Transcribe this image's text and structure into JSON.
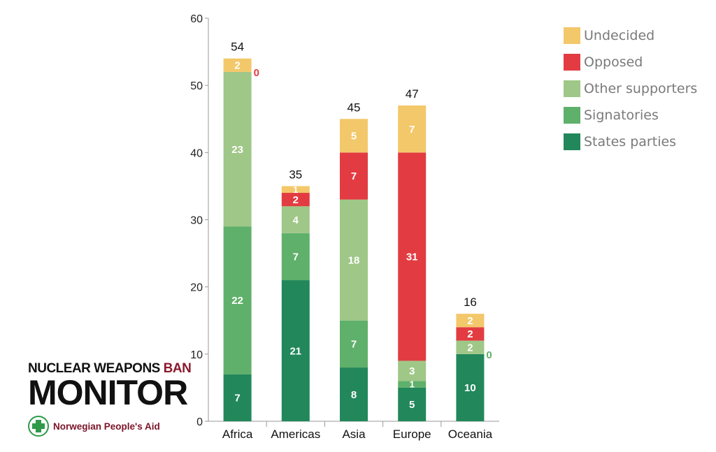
{
  "chart_data": {
    "type": "bar",
    "stacked": true,
    "categories": [
      "Africa",
      "Americas",
      "Asia",
      "Europe",
      "Oceania"
    ],
    "series": [
      {
        "name": "States parties",
        "values": [
          7,
          21,
          8,
          5,
          10
        ],
        "color": "#22875a"
      },
      {
        "name": "Signatories",
        "values": [
          22,
          7,
          7,
          1,
          0
        ],
        "color": "#5fb06a"
      },
      {
        "name": "Other supporters",
        "values": [
          23,
          4,
          18,
          3,
          2
        ],
        "color": "#9fc787"
      },
      {
        "name": "Opposed",
        "values": [
          0,
          2,
          7,
          31,
          2
        ],
        "color": "#e23c42"
      },
      {
        "name": "Undecided",
        "values": [
          2,
          1,
          5,
          7,
          2
        ],
        "color": "#f3c86a"
      }
    ],
    "totals": [
      54,
      35,
      45,
      47,
      16
    ],
    "ylim": [
      0,
      60
    ],
    "yticks": [
      0,
      10,
      20,
      30,
      40,
      50,
      60
    ],
    "grid": false,
    "legend_position": "top-right",
    "legend_order": [
      "Undecided",
      "Opposed",
      "Other supporters",
      "Signatories",
      "States parties"
    ]
  },
  "brand": {
    "line1_part1": "NUCLEAR WEAPONS",
    "line1_part2": "BAN",
    "line2": "MONITOR",
    "org": "Norwegian People's Aid"
  }
}
